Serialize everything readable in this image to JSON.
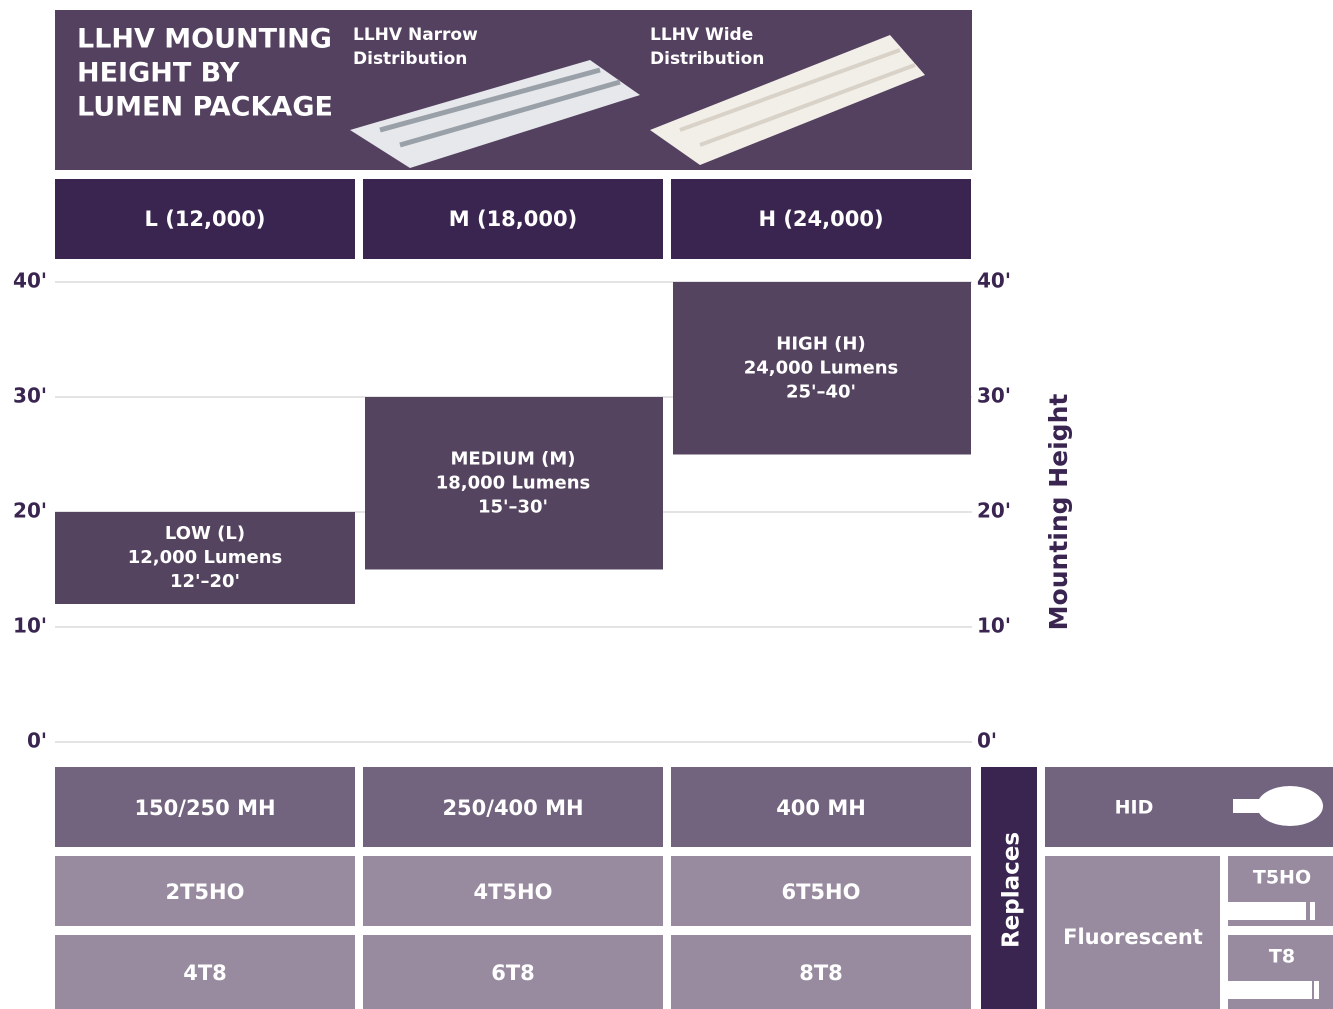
{
  "header": {
    "title_lines": [
      "LLHV MOUNTING",
      "HEIGHT BY",
      "LUMEN PACKAGE"
    ],
    "products": [
      [
        "LLHV Narrow",
        "Distribution"
      ],
      [
        "LLHV Wide",
        "Distribution"
      ]
    ]
  },
  "chart_data": {
    "type": "range-bar",
    "categories": [
      "L (12,000)",
      "M (18,000)",
      "H (24,000)"
    ],
    "names": [
      "LOW (L)",
      "MEDIUM (M)",
      "HIGH (H)"
    ],
    "lumens_labels": [
      "12,000 Lumens",
      "18,000 Lumens",
      "24,000 Lumens"
    ],
    "lows": [
      12,
      15,
      25
    ],
    "highs": [
      20,
      30,
      40
    ],
    "range_labels": [
      "12'–20'",
      "15'–30'",
      "25'–40'"
    ],
    "color": "#55445f",
    "ylim": [
      0,
      40
    ],
    "yticks": [
      {
        "value": 0,
        "label": "0'"
      },
      {
        "value": 10,
        "label": "10'"
      },
      {
        "value": 20,
        "label": "20'"
      },
      {
        "value": 30,
        "label": "30'"
      },
      {
        "value": 40,
        "label": "40'"
      }
    ],
    "y_label": "Mounting Height",
    "grid": true
  },
  "replaces": {
    "label": "Replaces",
    "rows": [
      [
        "150/250 MH",
        "250/400 MH",
        "400 MH"
      ],
      [
        "2T5HO",
        "4T5HO",
        "6T5HO"
      ],
      [
        "4T8",
        "6T8",
        "8T8"
      ]
    ],
    "hid": "HID",
    "fluorescent": "Fluorescent",
    "subtypes": [
      "T5HO",
      "T8"
    ]
  }
}
